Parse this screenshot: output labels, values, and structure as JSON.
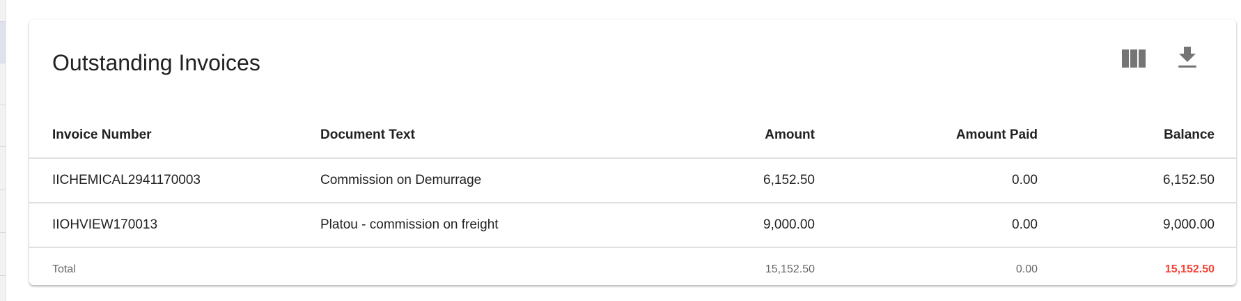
{
  "card": {
    "title": "Outstanding Invoices",
    "actions": [
      {
        "icon": "view-column-icon"
      },
      {
        "icon": "download-icon"
      }
    ],
    "icon_color": "#757575"
  },
  "table": {
    "columns": [
      "Invoice Number",
      "Document Text",
      "Amount",
      "Amount Paid",
      "Balance"
    ],
    "rows": [
      [
        "IICHEMICAL2941170003",
        "Commission on Demurrage",
        "6,152.50",
        "0.00",
        "6,152.50"
      ],
      [
        "IIOHVIEW170013",
        "Platou - commission on freight",
        "9,000.00",
        "0.00",
        "9,000.00"
      ]
    ],
    "total": {
      "label": "Total",
      "amount": "15,152.50",
      "amount_paid": "0.00",
      "balance": "15,152.50",
      "balance_color": "#f44336"
    }
  }
}
